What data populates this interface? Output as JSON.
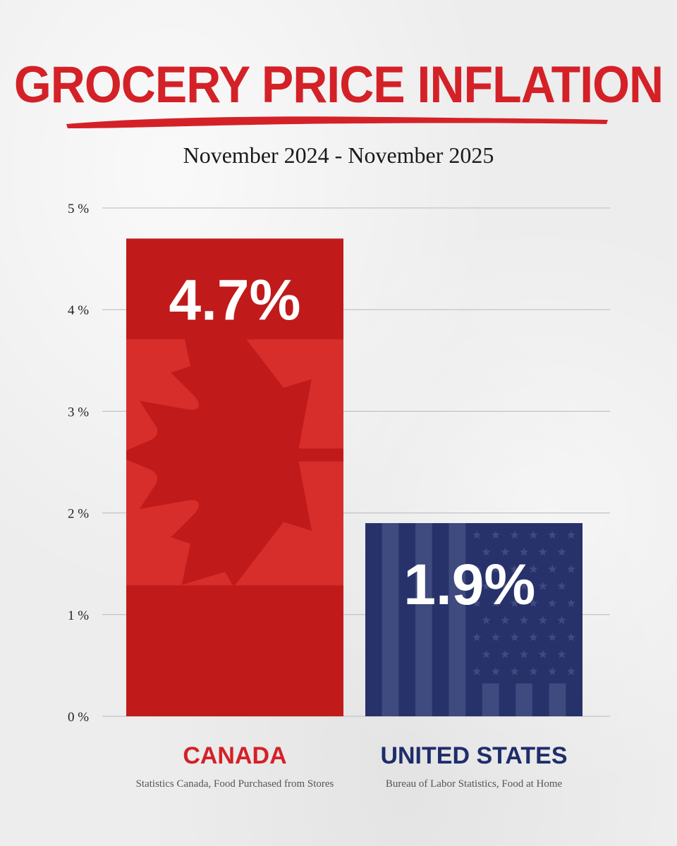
{
  "title": "GROCERY PRICE INFLATION",
  "subtitle": "November 2024 - November 2025",
  "colors": {
    "title": "#d42127",
    "canada_dark": "#c11a1a",
    "canada_light": "#d72e2b",
    "us_navy": "#27326a",
    "us_stripe": "#3f4a7f",
    "us_label": "#1f2d6b"
  },
  "chart_data": {
    "type": "bar",
    "categories": [
      "CANADA",
      "UNITED STATES"
    ],
    "values": [
      4.7,
      1.9
    ],
    "value_labels": [
      "4.7%",
      "1.9%"
    ],
    "ylim": [
      0,
      5
    ],
    "yticks": [
      {
        "value": 0,
        "label": "0 %"
      },
      {
        "value": 1,
        "label": "1 %"
      },
      {
        "value": 2,
        "label": "2 %"
      },
      {
        "value": 3,
        "label": "3 %"
      },
      {
        "value": 4,
        "label": "4 %"
      },
      {
        "value": 5,
        "label": "5 %"
      }
    ],
    "grid": true,
    "sources": [
      "Statistics Canada, Food Purchased from Stores",
      "Bureau of Labor Statistics, Food at Home"
    ]
  }
}
